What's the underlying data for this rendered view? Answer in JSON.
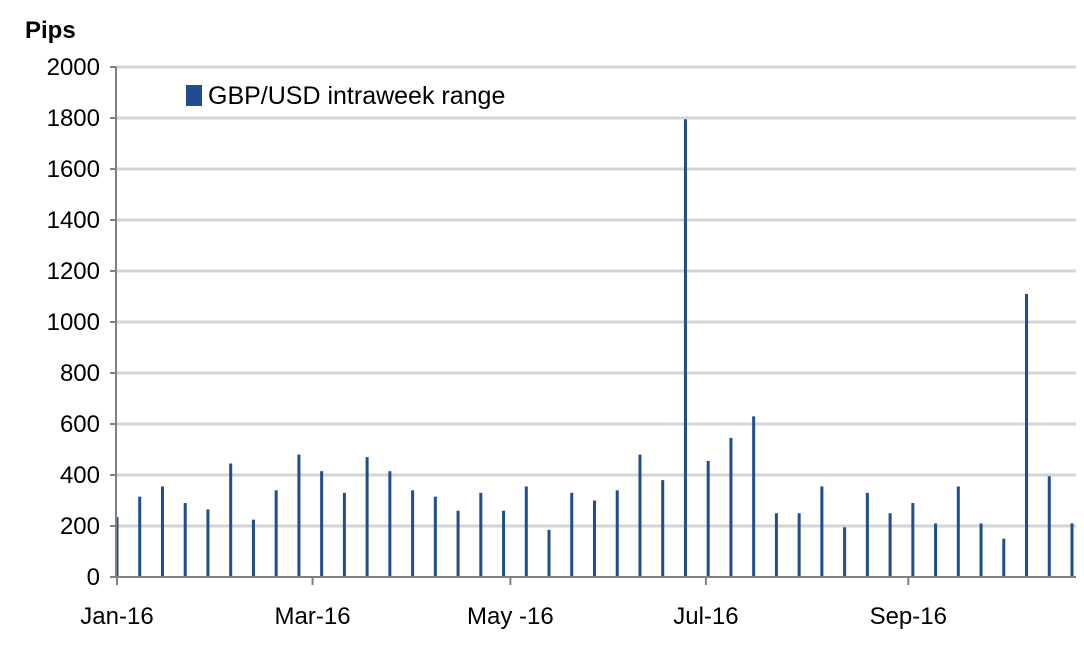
{
  "chart_data": {
    "type": "bar",
    "title": "",
    "ylabel": "Pips",
    "xlabel": "",
    "ylim": [
      0,
      2000
    ],
    "yticks": [
      0,
      200,
      400,
      600,
      800,
      1000,
      1200,
      1400,
      1600,
      1800,
      2000
    ],
    "grid": true,
    "legend": {
      "placement": "top-left",
      "label": "GBP/USD intraweek range"
    },
    "colors": {
      "bar": "#1f4e8c",
      "grid": "#d4d4d4",
      "axis": "#808080"
    },
    "x_ticks": [
      {
        "label": "Jan-16",
        "index": 0
      },
      {
        "label": "Mar-16",
        "index": 8.6
      },
      {
        "label": "May -16",
        "index": 17.3
      },
      {
        "label": "Jul-16",
        "index": 25.9
      },
      {
        "label": "Sep-16",
        "index": 34.8
      }
    ],
    "series": [
      {
        "name": "GBP/USD intraweek range",
        "values": [
          235,
          315,
          355,
          290,
          265,
          445,
          225,
          340,
          480,
          415,
          330,
          470,
          415,
          340,
          315,
          260,
          330,
          260,
          355,
          185,
          330,
          300,
          340,
          480,
          380,
          1795,
          455,
          545,
          630,
          250,
          250,
          355,
          195,
          330,
          250,
          290,
          210,
          355,
          210,
          150,
          1110,
          395,
          210
        ]
      }
    ]
  }
}
